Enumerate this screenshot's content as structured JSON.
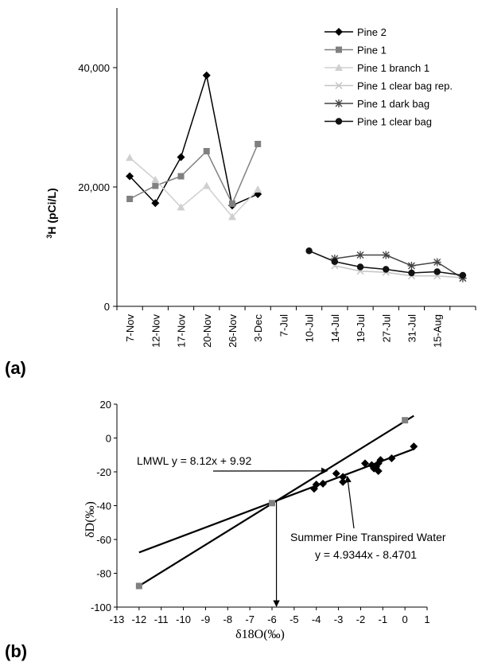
{
  "chart_data": [
    {
      "type": "line",
      "panel_label": "(a)",
      "ylabel_sup": "3",
      "ylabel_main": "H (pCi/L)",
      "ylim": [
        0,
        50000
      ],
      "yticks": [
        0,
        20000,
        40000
      ],
      "ytick_labels": [
        "0",
        "20,000",
        "40,000"
      ],
      "categories": [
        "7-Nov",
        "12-Nov",
        "17-Nov",
        "20-Nov",
        "26-Nov",
        "3-Dec",
        "7-Jul",
        "10-Jul",
        "14-Jul",
        "19-Jul",
        "27-Jul",
        "31-Jul",
        "15-Aug",
        ""
      ],
      "legend_position": "top-right",
      "series": [
        {
          "name": "Pine 2",
          "marker": "diamond",
          "color": "#000000",
          "values": [
            21800,
            17300,
            25000,
            38700,
            16900,
            18800,
            null,
            null,
            null,
            null,
            null,
            null,
            null,
            null
          ]
        },
        {
          "name": "Pine 1",
          "marker": "square",
          "color": "#808080",
          "values": [
            18000,
            20200,
            21800,
            26000,
            17200,
            27200,
            null,
            null,
            null,
            null,
            null,
            null,
            null,
            null
          ]
        },
        {
          "name": "Pine 1 branch 1",
          "marker": "triangle",
          "color": "#cfcfcf",
          "values": [
            24900,
            21200,
            16600,
            20200,
            15000,
            19600,
            null,
            null,
            null,
            null,
            null,
            null,
            null,
            null
          ]
        },
        {
          "name": "Pine 1 clear bag rep.",
          "marker": "x",
          "color": "#c4c4c4",
          "values": [
            null,
            null,
            null,
            null,
            null,
            null,
            null,
            null,
            6800,
            5900,
            5700,
            5100,
            5100,
            4800
          ]
        },
        {
          "name": "Pine 1 dark bag",
          "marker": "star",
          "color": "#444444",
          "values": [
            null,
            null,
            null,
            null,
            null,
            null,
            null,
            null,
            8000,
            8600,
            8600,
            6800,
            7400,
            4700
          ]
        },
        {
          "name": "Pine 1 clear bag",
          "marker": "circle",
          "color": "#111111",
          "values": [
            null,
            null,
            null,
            null,
            null,
            null,
            null,
            9300,
            7500,
            6600,
            6200,
            5600,
            5800,
            5200
          ]
        }
      ]
    },
    {
      "type": "scatter",
      "panel_label": "(b)",
      "xlabel": "δ18O(‰)",
      "ylabel": "δD(‰)",
      "xlim": [
        -13,
        1
      ],
      "ylim": [
        -100,
        20
      ],
      "xticks": [
        -13,
        -12,
        -11,
        -10,
        -9,
        -8,
        -7,
        -6,
        -5,
        -4,
        -3,
        -2,
        -1,
        0,
        1
      ],
      "yticks": [
        -100,
        -80,
        -60,
        -40,
        -20,
        0,
        20
      ],
      "series": [
        {
          "name": "",
          "marker": "square",
          "color": "#808080",
          "points": [
            [
              -12,
              -87.5
            ],
            [
              -6,
              -38.5
            ],
            [
              0,
              10.5
            ]
          ]
        },
        {
          "name": "",
          "marker": "diamond",
          "color": "#000000",
          "points": [
            [
              -4.1,
              -30
            ],
            [
              -4.0,
              -27.5
            ],
            [
              -3.7,
              -27
            ],
            [
              -3.1,
              -21
            ],
            [
              -2.8,
              -23
            ],
            [
              -2.8,
              -26
            ],
            [
              -1.8,
              -15
            ],
            [
              -1.5,
              -16
            ],
            [
              -1.4,
              -18
            ],
            [
              -1.3,
              -17
            ],
            [
              -1.2,
              -19.5
            ],
            [
              -1.2,
              -15
            ],
            [
              -1.1,
              -13
            ],
            [
              -0.6,
              -12
            ],
            [
              0.4,
              -5
            ]
          ]
        }
      ],
      "lines": [
        {
          "label": "LMWL y = 8.12x + 9.92",
          "slope": 8.12,
          "intercept": 9.92,
          "x_range": [
            -12,
            0.4
          ]
        },
        {
          "label_line1": "Summer Pine Transpired Water",
          "label_line2": "y = 4.9344x - 8.4701",
          "slope": 4.9344,
          "intercept": -8.4701,
          "x_range": [
            -12,
            0.4
          ]
        }
      ],
      "intersection_x": -5.8
    }
  ]
}
